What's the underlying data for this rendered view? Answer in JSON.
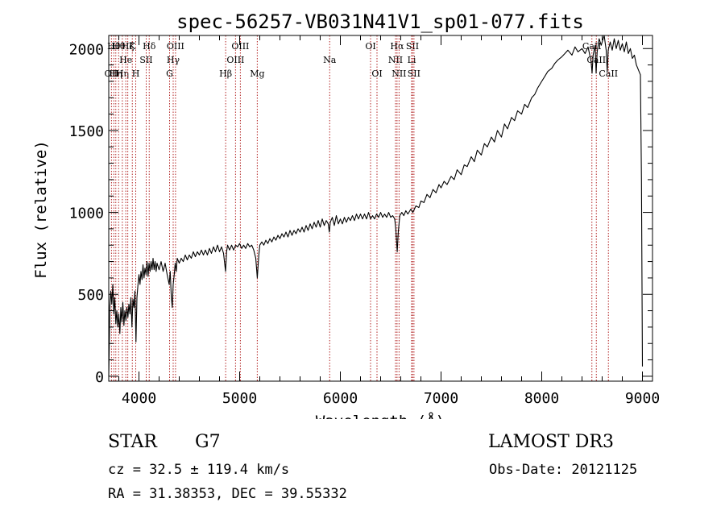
{
  "chart_data": {
    "type": "line",
    "title": "spec-56257-VB031N41V1_sp01-077.fits",
    "xlabel": "Wavelength (Å)",
    "ylabel": "Flux (relative)",
    "xlim": [
      3700,
      9100
    ],
    "ylim": [
      -30,
      2080
    ],
    "xticks": [
      4000,
      5000,
      6000,
      7000,
      8000,
      9000
    ],
    "yticks": [
      0,
      500,
      1000,
      1500,
      2000
    ],
    "x_minor_step": 200,
    "y_minor_step": 100,
    "line_color": "#000000",
    "marker_color": "#b22222",
    "series": [
      {
        "name": "flux",
        "points": [
          [
            3700,
            0
          ],
          [
            3705,
            180
          ],
          [
            3710,
            420
          ],
          [
            3720,
            520
          ],
          [
            3730,
            440
          ],
          [
            3740,
            560
          ],
          [
            3750,
            380
          ],
          [
            3760,
            480
          ],
          [
            3770,
            320
          ],
          [
            3780,
            400
          ],
          [
            3790,
            300
          ],
          [
            3800,
            380
          ],
          [
            3810,
            260
          ],
          [
            3820,
            420
          ],
          [
            3830,
            330
          ],
          [
            3840,
            450
          ],
          [
            3850,
            310
          ],
          [
            3860,
            400
          ],
          [
            3870,
            340
          ],
          [
            3880,
            420
          ],
          [
            3890,
            360
          ],
          [
            3900,
            440
          ],
          [
            3910,
            380
          ],
          [
            3920,
            480
          ],
          [
            3930,
            300
          ],
          [
            3940,
            470
          ],
          [
            3950,
            420
          ],
          [
            3960,
            520
          ],
          [
            3970,
            210
          ],
          [
            3980,
            480
          ],
          [
            3990,
            560
          ],
          [
            4000,
            620
          ],
          [
            4010,
            560
          ],
          [
            4020,
            640
          ],
          [
            4030,
            590
          ],
          [
            4040,
            680
          ],
          [
            4050,
            600
          ],
          [
            4060,
            660
          ],
          [
            4070,
            620
          ],
          [
            4080,
            700
          ],
          [
            4090,
            610
          ],
          [
            4100,
            690
          ],
          [
            4110,
            640
          ],
          [
            4120,
            700
          ],
          [
            4130,
            650
          ],
          [
            4140,
            720
          ],
          [
            4150,
            650
          ],
          [
            4160,
            700
          ],
          [
            4170,
            640
          ],
          [
            4180,
            690
          ],
          [
            4200,
            650
          ],
          [
            4220,
            700
          ],
          [
            4240,
            640
          ],
          [
            4260,
            690
          ],
          [
            4280,
            620
          ],
          [
            4300,
            560
          ],
          [
            4310,
            640
          ],
          [
            4320,
            500
          ],
          [
            4330,
            420
          ],
          [
            4340,
            560
          ],
          [
            4350,
            620
          ],
          [
            4360,
            690
          ],
          [
            4370,
            640
          ],
          [
            4380,
            720
          ],
          [
            4400,
            690
          ],
          [
            4420,
            720
          ],
          [
            4440,
            700
          ],
          [
            4460,
            740
          ],
          [
            4480,
            710
          ],
          [
            4500,
            740
          ],
          [
            4520,
            720
          ],
          [
            4540,
            760
          ],
          [
            4560,
            730
          ],
          [
            4580,
            760
          ],
          [
            4600,
            740
          ],
          [
            4620,
            770
          ],
          [
            4640,
            740
          ],
          [
            4660,
            770
          ],
          [
            4680,
            740
          ],
          [
            4700,
            780
          ],
          [
            4720,
            750
          ],
          [
            4740,
            790
          ],
          [
            4760,
            760
          ],
          [
            4780,
            800
          ],
          [
            4800,
            760
          ],
          [
            4820,
            790
          ],
          [
            4840,
            750
          ],
          [
            4860,
            640
          ],
          [
            4870,
            760
          ],
          [
            4880,
            800
          ],
          [
            4900,
            770
          ],
          [
            4920,
            800
          ],
          [
            4940,
            770
          ],
          [
            4960,
            800
          ],
          [
            4980,
            790
          ],
          [
            5000,
            810
          ],
          [
            5020,
            780
          ],
          [
            5040,
            800
          ],
          [
            5060,
            780
          ],
          [
            5080,
            810
          ],
          [
            5100,
            790
          ],
          [
            5120,
            800
          ],
          [
            5140,
            770
          ],
          [
            5160,
            720
          ],
          [
            5175,
            600
          ],
          [
            5190,
            740
          ],
          [
            5200,
            800
          ],
          [
            5220,
            820
          ],
          [
            5240,
            800
          ],
          [
            5260,
            830
          ],
          [
            5280,
            810
          ],
          [
            5300,
            840
          ],
          [
            5320,
            820
          ],
          [
            5340,
            850
          ],
          [
            5360,
            830
          ],
          [
            5380,
            860
          ],
          [
            5400,
            840
          ],
          [
            5420,
            870
          ],
          [
            5440,
            850
          ],
          [
            5460,
            880
          ],
          [
            5480,
            850
          ],
          [
            5500,
            890
          ],
          [
            5520,
            860
          ],
          [
            5540,
            890
          ],
          [
            5560,
            870
          ],
          [
            5580,
            900
          ],
          [
            5600,
            880
          ],
          [
            5620,
            910
          ],
          [
            5640,
            880
          ],
          [
            5660,
            920
          ],
          [
            5680,
            890
          ],
          [
            5700,
            930
          ],
          [
            5720,
            900
          ],
          [
            5740,
            940
          ],
          [
            5760,
            910
          ],
          [
            5780,
            950
          ],
          [
            5800,
            910
          ],
          [
            5820,
            960
          ],
          [
            5840,
            920
          ],
          [
            5860,
            950
          ],
          [
            5880,
            930
          ],
          [
            5890,
            880
          ],
          [
            5900,
            940
          ],
          [
            5920,
            970
          ],
          [
            5940,
            920
          ],
          [
            5960,
            980
          ],
          [
            5980,
            930
          ],
          [
            6000,
            960
          ],
          [
            6020,
            930
          ],
          [
            6040,
            970
          ],
          [
            6060,
            940
          ],
          [
            6080,
            970
          ],
          [
            6100,
            950
          ],
          [
            6120,
            980
          ],
          [
            6140,
            950
          ],
          [
            6160,
            990
          ],
          [
            6180,
            960
          ],
          [
            6200,
            990
          ],
          [
            6220,
            960
          ],
          [
            6240,
            990
          ],
          [
            6260,
            960
          ],
          [
            6280,
            1000
          ],
          [
            6300,
            960
          ],
          [
            6320,
            980
          ],
          [
            6340,
            960
          ],
          [
            6360,
            990
          ],
          [
            6380,
            970
          ],
          [
            6400,
            1000
          ],
          [
            6420,
            970
          ],
          [
            6440,
            990
          ],
          [
            6460,
            970
          ],
          [
            6480,
            1000
          ],
          [
            6500,
            970
          ],
          [
            6520,
            980
          ],
          [
            6540,
            960
          ],
          [
            6550,
            900
          ],
          [
            6565,
            760
          ],
          [
            6575,
            880
          ],
          [
            6590,
            980
          ],
          [
            6610,
            1000
          ],
          [
            6630,
            980
          ],
          [
            6650,
            1010
          ],
          [
            6670,
            990
          ],
          [
            6700,
            1020
          ],
          [
            6720,
            1000
          ],
          [
            6750,
            1040
          ],
          [
            6780,
            1030
          ],
          [
            6800,
            1070
          ],
          [
            6830,
            1060
          ],
          [
            6860,
            1110
          ],
          [
            6890,
            1090
          ],
          [
            6920,
            1140
          ],
          [
            6950,
            1120
          ],
          [
            6980,
            1170
          ],
          [
            7000,
            1150
          ],
          [
            7030,
            1190
          ],
          [
            7060,
            1170
          ],
          [
            7100,
            1220
          ],
          [
            7130,
            1200
          ],
          [
            7160,
            1260
          ],
          [
            7200,
            1230
          ],
          [
            7230,
            1290
          ],
          [
            7260,
            1280
          ],
          [
            7300,
            1340
          ],
          [
            7330,
            1310
          ],
          [
            7360,
            1380
          ],
          [
            7400,
            1350
          ],
          [
            7430,
            1420
          ],
          [
            7460,
            1400
          ],
          [
            7500,
            1460
          ],
          [
            7530,
            1430
          ],
          [
            7560,
            1500
          ],
          [
            7600,
            1460
          ],
          [
            7630,
            1540
          ],
          [
            7660,
            1510
          ],
          [
            7700,
            1580
          ],
          [
            7730,
            1560
          ],
          [
            7760,
            1620
          ],
          [
            7800,
            1600
          ],
          [
            7830,
            1660
          ],
          [
            7860,
            1640
          ],
          [
            7900,
            1700
          ],
          [
            7930,
            1720
          ],
          [
            7960,
            1760
          ],
          [
            8000,
            1800
          ],
          [
            8030,
            1830
          ],
          [
            8060,
            1860
          ],
          [
            8100,
            1880
          ],
          [
            8130,
            1910
          ],
          [
            8160,
            1930
          ],
          [
            8200,
            1950
          ],
          [
            8230,
            1970
          ],
          [
            8260,
            1990
          ],
          [
            8300,
            1960
          ],
          [
            8330,
            2010
          ],
          [
            8360,
            1980
          ],
          [
            8400,
            2000
          ],
          [
            8430,
            1970
          ],
          [
            8460,
            2010
          ],
          [
            8490,
            1920
          ],
          [
            8500,
            1850
          ],
          [
            8510,
            1960
          ],
          [
            8530,
            2020
          ],
          [
            8540,
            1850
          ],
          [
            8550,
            1980
          ],
          [
            8570,
            2060
          ],
          [
            8590,
            2020
          ],
          [
            8620,
            2080
          ],
          [
            8640,
            1990
          ],
          [
            8650,
            1860
          ],
          [
            8660,
            1990
          ],
          [
            8680,
            2040
          ],
          [
            8700,
            1990
          ],
          [
            8720,
            2060
          ],
          [
            8740,
            2000
          ],
          [
            8760,
            2050
          ],
          [
            8780,
            1990
          ],
          [
            8800,
            2030
          ],
          [
            8820,
            1980
          ],
          [
            8840,
            2040
          ],
          [
            8860,
            1970
          ],
          [
            8880,
            2000
          ],
          [
            8900,
            1940
          ],
          [
            8920,
            1960
          ],
          [
            8940,
            1900
          ],
          [
            8960,
            1870
          ],
          [
            8980,
            1840
          ],
          [
            8990,
            1200
          ],
          [
            9000,
            60
          ]
        ]
      }
    ],
    "line_markers": [
      {
        "wavelength": 3727,
        "label": "OII",
        "row": 3
      },
      {
        "wavelength": 3750,
        "label": "Hθ",
        "row": 1
      },
      {
        "wavelength": 3770,
        "label": "Hη",
        "row": 3
      },
      {
        "wavelength": 3798,
        "label": "Hθ",
        "row": 1
      },
      {
        "wavelength": 3835,
        "label": "Hη",
        "row": 3
      },
      {
        "wavelength": 3869,
        "label": "He",
        "row": 2
      },
      {
        "wavelength": 3889,
        "label": "Hζ",
        "row": 1
      },
      {
        "wavelength": 3934,
        "label": "K",
        "row": 1
      },
      {
        "wavelength": 3968,
        "label": "H",
        "row": 3
      },
      {
        "wavelength": 4072,
        "label": "SII",
        "row": 2
      },
      {
        "wavelength": 4102,
        "label": "Hδ",
        "row": 1
      },
      {
        "wavelength": 4304,
        "label": "G",
        "row": 3
      },
      {
        "wavelength": 4340,
        "label": "Hγ",
        "row": 2
      },
      {
        "wavelength": 4363,
        "label": "OIII",
        "row": 1
      },
      {
        "wavelength": 4861,
        "label": "Hβ",
        "row": 3
      },
      {
        "wavelength": 4959,
        "label": "OIII",
        "row": 2
      },
      {
        "wavelength": 5007,
        "label": "OIII",
        "row": 1
      },
      {
        "wavelength": 5175,
        "label": "Mg",
        "row": 3
      },
      {
        "wavelength": 5894,
        "label": "Na",
        "row": 2
      },
      {
        "wavelength": 6300,
        "label": "OI",
        "row": 1
      },
      {
        "wavelength": 6364,
        "label": "OI",
        "row": 3
      },
      {
        "wavelength": 6548,
        "label": "NII",
        "row": 2
      },
      {
        "wavelength": 6563,
        "label": "Hα",
        "row": 1
      },
      {
        "wavelength": 6583,
        "label": "NII",
        "row": 3
      },
      {
        "wavelength": 6708,
        "label": "Li",
        "row": 2
      },
      {
        "wavelength": 6716,
        "label": "SII",
        "row": 1
      },
      {
        "wavelength": 6731,
        "label": "SII",
        "row": 3
      },
      {
        "wavelength": 8498,
        "label": "CaII",
        "row": 1
      },
      {
        "wavelength": 8542,
        "label": "CaII",
        "row": 2
      },
      {
        "wavelength": 8662,
        "label": "CaII",
        "row": 3
      }
    ]
  },
  "info": {
    "object_class": "STAR",
    "subclass": "G7",
    "survey": "LAMOST DR3",
    "cz_line": "cz = 32.5 ± 119.4 km/s",
    "obs_date_line": "Obs-Date: 20121125",
    "radec_line": "RA =  31.38353, DEC =  39.55332"
  }
}
